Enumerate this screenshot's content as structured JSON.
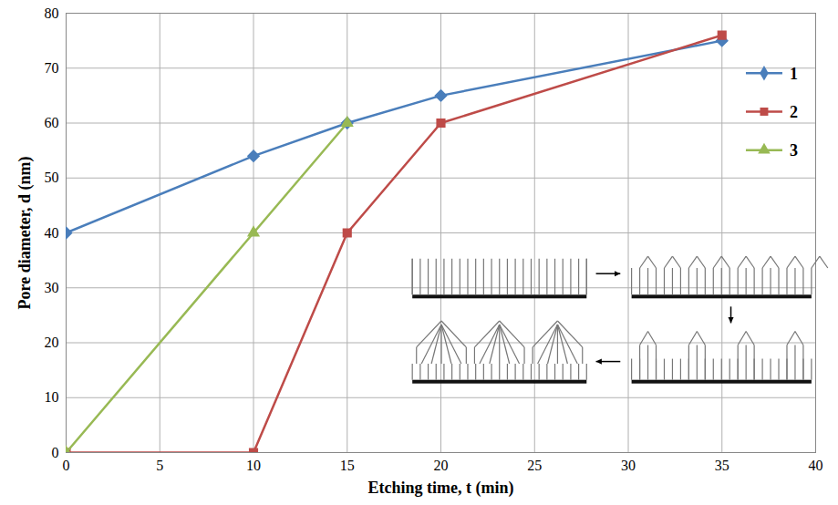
{
  "chart_data": {
    "type": "line",
    "x_label": "Etching time, t (min)",
    "y_label": "Pore diameter, d (nm)",
    "x": [
      0,
      10,
      15,
      20,
      35
    ],
    "series": [
      {
        "name": "1",
        "color": "#4a7ebb",
        "marker": "diamond",
        "values": [
          40,
          54,
          60,
          65,
          75
        ]
      },
      {
        "name": "2",
        "color": "#be4b48",
        "marker": "square",
        "values": [
          0,
          0,
          40,
          60,
          76
        ]
      },
      {
        "name": "3",
        "color": "#98b954",
        "marker": "triangle",
        "values": [
          0,
          40,
          60,
          null,
          null
        ]
      }
    ],
    "xlim": [
      0,
      40
    ],
    "xticks": [
      0,
      5,
      10,
      15,
      20,
      25,
      30,
      35,
      40
    ],
    "ylim": [
      0,
      80
    ],
    "yticks": [
      0,
      10,
      20,
      30,
      40,
      50,
      60,
      70,
      80
    ],
    "grid": true,
    "legend": "upper right"
  }
}
